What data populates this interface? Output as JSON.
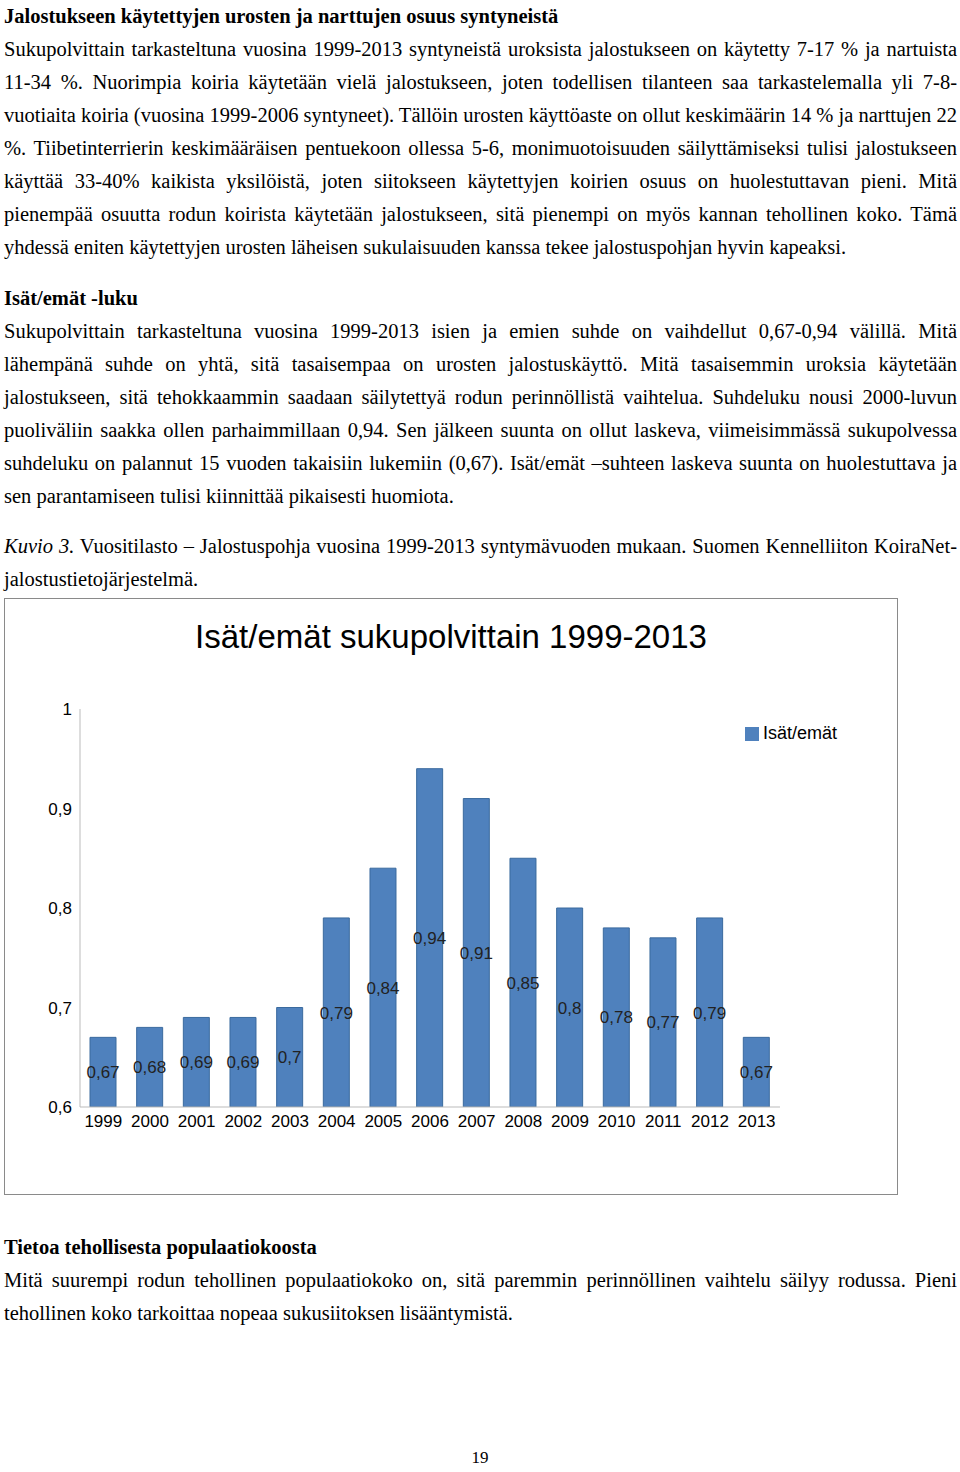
{
  "section_1": {
    "heading": "Jalostukseen käytettyjen urosten ja narttujen osuus syntyneistä",
    "text": "Sukupolvittain tarkasteltuna vuosina 1999-2013 syntyneistä uroksista jalostukseen on käytetty 7-17 % ja nartuista 11-34 %. Nuorimpia koiria käytetään vielä jalostukseen, joten todellisen tilanteen saa tarkastelemalla yli 7-8-vuotiaita koiria (vuosina 1999-2006 syntyneet). Tällöin urosten käyttöaste on ollut keskimäärin 14 % ja narttujen 22 %. Tiibetinterrierin keskimääräisen pentuekoon ollessa 5-6, monimuotoisuuden säilyttämiseksi tulisi jalostukseen käyttää 33-40% kaikista yksilöistä, joten siitokseen käytettyjen koirien osuus on huolestuttavan pieni. Mitä pienempää osuutta rodun koirista käytetään jalostukseen, sitä pienempi on myös kannan tehollinen koko. Tämä yhdessä eniten käytettyjen urosten läheisen sukulaisuuden kanssa tekee jalostuspohjan hyvin kapeaksi."
  },
  "section_2": {
    "heading": "Isät/emät -luku",
    "text": "Sukupolvittain tarkasteltuna vuosina 1999-2013 isien ja emien suhde on vaihdellut 0,67-0,94 välillä. Mitä lähempänä suhde on yhtä, sitä tasaisempaa on urosten jalostuskäyttö. Mitä tasaisemmin uroksia käytetään jalostukseen, sitä tehokkaammin saadaan säilytettyä rodun perinnöllistä vaihtelua. Suhdeluku nousi 2000-luvun puoliväliin saakka ollen parhaimmillaan 0,94. Sen jälkeen suunta on ollut laskeva, viimeisimmässä sukupolvessa suhdeluku on palannut 15 vuoden takaisiin lukemiin (0,67). Isät/emät –suhteen laskeva suunta on huolestuttava ja sen parantamiseen tulisi kiinnittää pikaisesti huomiota.",
    "caption": {
      "label": "Kuvio 3.",
      "text": "Vuositilasto – Jalostuspohja vuosina 1999-2013 syntymävuoden mukaan. Suomen Kennelliiton KoiraNet-jalostustietojärjestelmä."
    }
  },
  "chart_data": {
    "type": "bar",
    "title": "Isät/emät sukupolvittain 1999-2013",
    "categories": [
      "1999",
      "2000",
      "2001",
      "2002",
      "2003",
      "2004",
      "2005",
      "2006",
      "2007",
      "2008",
      "2009",
      "2010",
      "2011",
      "2012",
      "2013"
    ],
    "series": [
      {
        "name": "Isät/emät",
        "color": "#4f81bd",
        "values": [
          0.67,
          0.68,
          0.69,
          0.69,
          0.7,
          0.79,
          0.84,
          0.94,
          0.91,
          0.85,
          0.8,
          0.78,
          0.77,
          0.79,
          0.67
        ],
        "value_labels": [
          "0,67",
          "0,68",
          "0,69",
          "0,69",
          "0,7",
          "0,79",
          "0,84",
          "0,94",
          "0,91",
          "0,85",
          "0,8",
          "0,78",
          "0,77",
          "0,79",
          "0,67"
        ]
      }
    ],
    "ylim": [
      0.6,
      1
    ],
    "yticks": [
      {
        "value": 0.6,
        "label": "0,6"
      },
      {
        "value": 0.7,
        "label": "0,7"
      },
      {
        "value": 0.8,
        "label": "0,8"
      },
      {
        "value": 0.9,
        "label": "0,9"
      },
      1
    ],
    "grid": false,
    "legend": "right",
    "data_labels": true
  },
  "section_3": {
    "heading": "Tietoa tehollisesta populaatiokoosta",
    "text": "Mitä suurempi rodun tehollinen populaatiokoko on, sitä paremmin perinnöllinen vaihtelu säilyy rodussa. Pieni tehollinen koko tarkoittaa nopeaa sukusiitoksen lisääntymistä."
  },
  "page_number": 19
}
